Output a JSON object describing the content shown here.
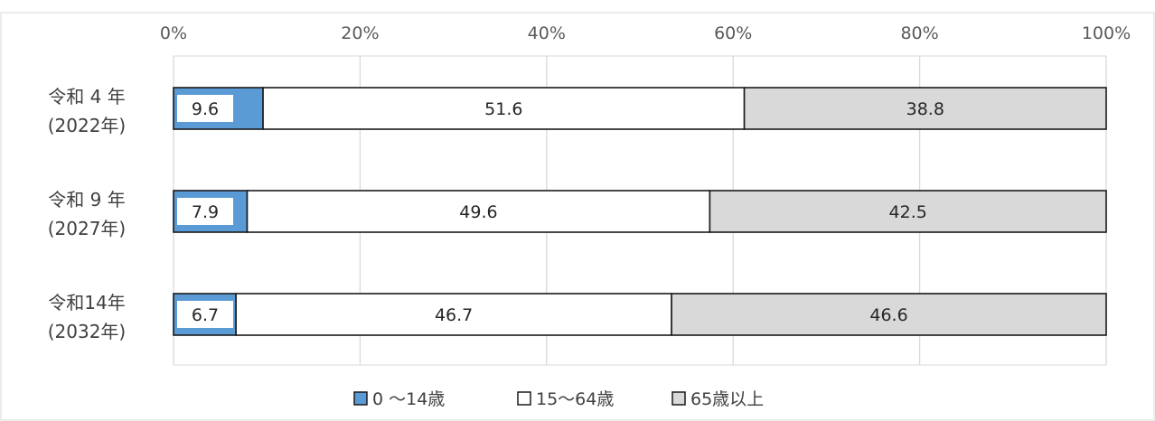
{
  "chart_data": {
    "type": "bar",
    "orientation": "horizontal",
    "stacked": true,
    "percent": true,
    "xlim": [
      0,
      100
    ],
    "ticks": [
      "0%",
      "20%",
      "40%",
      "60%",
      "80%",
      "100%"
    ],
    "categories": [
      {
        "line1": "令和 4 年",
        "line2": "(2022年)"
      },
      {
        "line1": "令和 9 年",
        "line2": "(2027年)"
      },
      {
        "line1": "令和14年",
        "line2": "(2032年)"
      }
    ],
    "series": [
      {
        "name": "0 〜14歳",
        "color": "#5b9bd5",
        "values": [
          9.6,
          7.9,
          6.7
        ]
      },
      {
        "name": "15〜64歳",
        "color": "#ffffff",
        "values": [
          51.6,
          49.6,
          46.7
        ]
      },
      {
        "name": "65歳以上",
        "color": "#d9d9d9",
        "values": [
          38.8,
          42.5,
          46.6
        ]
      }
    ],
    "value_labels": [
      [
        "9.6",
        "51.6",
        "38.8"
      ],
      [
        "7.9",
        "49.6",
        "42.5"
      ],
      [
        "6.7",
        "46.7",
        "46.6"
      ]
    ],
    "grid": true,
    "legend": "bottom"
  }
}
